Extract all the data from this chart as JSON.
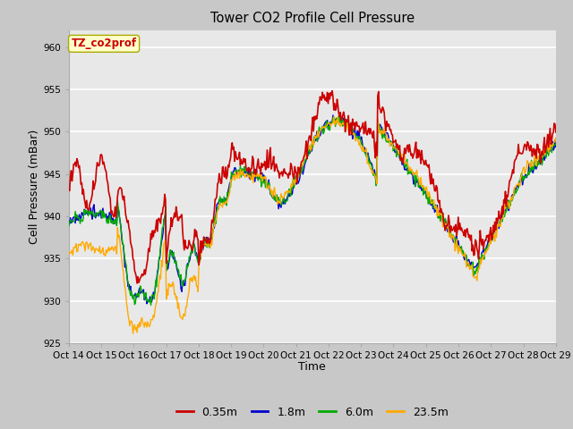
{
  "title": "Tower CO2 Profile Cell Pressure",
  "xlabel": "Time",
  "ylabel": "Cell Pressure (mBar)",
  "ylim": [
    925,
    962
  ],
  "yticks": [
    925,
    930,
    935,
    940,
    945,
    950,
    955,
    960
  ],
  "xtick_labels": [
    "Oct 14",
    "Oct 15",
    "Oct 16",
    "Oct 17",
    "Oct 18",
    "Oct 19",
    "Oct 20",
    "Oct 21",
    "Oct 22",
    "Oct 23",
    "Oct 24",
    "Oct 25",
    "Oct 26",
    "Oct 27",
    "Oct 28",
    "Oct 29"
  ],
  "series": {
    "0.35m": {
      "color": "#cc0000",
      "lw": 1.2
    },
    "1.8m": {
      "color": "#0000cc",
      "lw": 1.0
    },
    "6.0m": {
      "color": "#00aa00",
      "lw": 1.0
    },
    "23.5m": {
      "color": "#ffaa00",
      "lw": 1.0
    }
  },
  "annotation_text": "TZ_co2prof",
  "annotation_color": "#cc0000",
  "annotation_bg": "#ffffcc",
  "annotation_border": "#aaaa00",
  "fig_bg_color": "#c8c8c8",
  "plot_bg_color": "#e8e8e8",
  "n_points": 600
}
